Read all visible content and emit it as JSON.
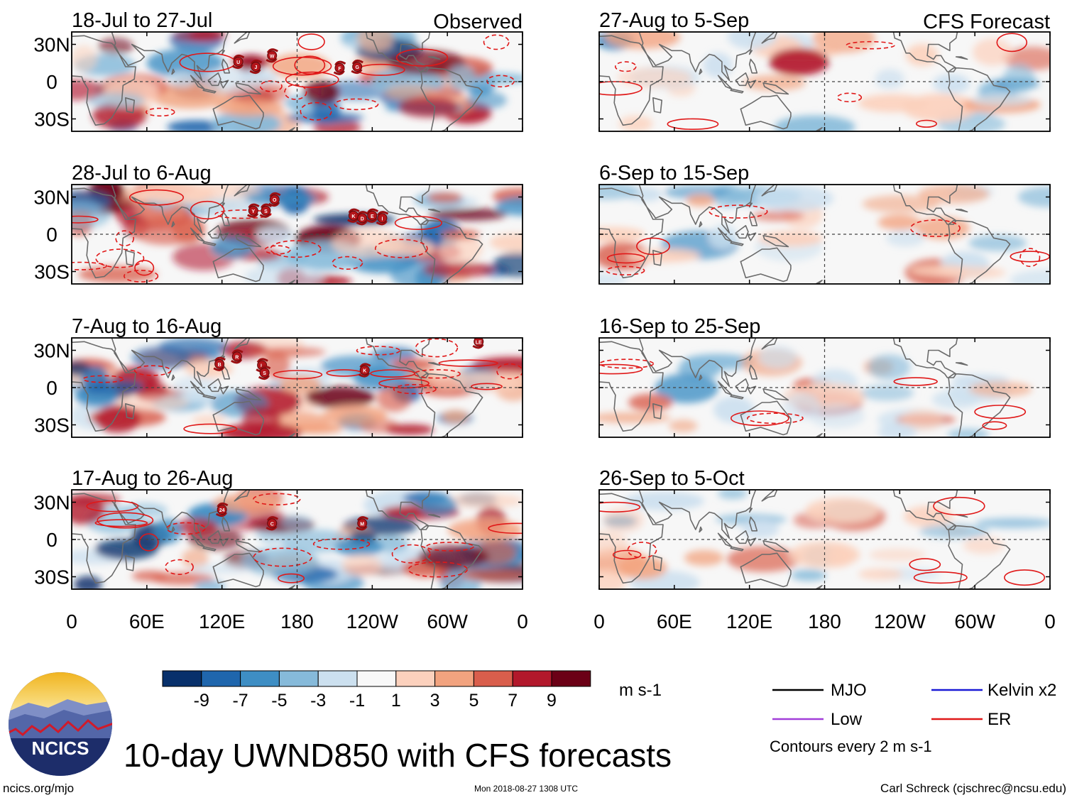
{
  "chart_data": {
    "type": "heatmap",
    "title": "10-day UWND850 with CFS forecasts",
    "variable": "850-hPa zonal wind anomaly",
    "x_ticks": [
      "0",
      "60E",
      "120E",
      "180",
      "120W",
      "60W",
      "0"
    ],
    "y_ticks": [
      "30N",
      "0",
      "30S"
    ],
    "xlim_deg_east": [
      0,
      360
    ],
    "ylim_deg": [
      -40,
      40
    ],
    "observed_label": "Observed",
    "forecast_label": "CFS Forecast",
    "observed_panels": [
      {
        "label": "18-Jul to 27-Jul",
        "storms": [
          {
            "id": "U",
            "lon": 133,
            "lat": 16
          },
          {
            "id": "J",
            "lon": 147,
            "lat": 12
          },
          {
            "id": "W",
            "lon": 160,
            "lat": 21
          },
          {
            "id": "F",
            "lon": 214,
            "lat": 11
          },
          {
            "id": "G",
            "lon": 228,
            "lat": 12
          }
        ]
      },
      {
        "label": "28-Jul to 6-Aug",
        "storms": [
          {
            "id": "O",
            "lon": 162,
            "lat": 28
          },
          {
            "id": "Y",
            "lon": 145,
            "lat": 19
          },
          {
            "id": "S",
            "lon": 155,
            "lat": 19
          },
          {
            "id": "K",
            "lon": 225,
            "lat": 15
          },
          {
            "id": "D",
            "lon": 232,
            "lat": 13
          },
          {
            "id": "E",
            "lon": 240,
            "lat": 15
          },
          {
            "id": "I",
            "lon": 248,
            "lat": 13
          }
        ]
      },
      {
        "label": "7-Aug to 16-Aug",
        "storms": [
          {
            "id": "B",
            "lon": 118,
            "lat": 19
          },
          {
            "id": "R",
            "lon": 132,
            "lat": 25
          },
          {
            "id": "L",
            "lon": 152,
            "lat": 18
          },
          {
            "id": "S",
            "lon": 154,
            "lat": 12
          },
          {
            "id": "LE",
            "lon": 325,
            "lat": 37
          },
          {
            "id": "K",
            "lon": 234,
            "lat": 14
          }
        ]
      },
      {
        "label": "17-Aug to 26-Aug",
        "storms": [
          {
            "id": "24",
            "lon": 120,
            "lat": 24
          },
          {
            "id": "C",
            "lon": 160,
            "lat": 13
          },
          {
            "id": "M",
            "lon": 232,
            "lat": 13
          }
        ]
      }
    ],
    "forecast_panels": [
      {
        "label": "27-Aug to 5-Sep"
      },
      {
        "label": "6-Sep to 15-Sep"
      },
      {
        "label": "16-Sep to 25-Sep"
      },
      {
        "label": "26-Sep to 5-Oct"
      }
    ],
    "colorbar": {
      "labels": [
        "-9",
        "-7",
        "-5",
        "-3",
        "-1",
        "1",
        "3",
        "5",
        "7",
        "9"
      ],
      "colors": [
        "#08306b",
        "#1f66ad",
        "#3e8ec4",
        "#86bada",
        "#cce0ef",
        "#f8f8f8",
        "#fcd1bd",
        "#f2a37f",
        "#d95e4c",
        "#b2182b",
        "#6b0016"
      ],
      "units": "m s-1"
    },
    "legend": [
      {
        "name": "MJO",
        "color": "#000000"
      },
      {
        "name": "Kelvin x2",
        "color": "#1a1ad6"
      },
      {
        "name": "Low",
        "color": "#a23ed9"
      },
      {
        "name": "ER",
        "color": "#e01818"
      }
    ],
    "contour_note": "Contours every 2 m s-1"
  },
  "logo": {
    "text": "NCICS"
  },
  "footer": {
    "url": "ncics.org/mjo",
    "timestamp": "Mon 2018-08-27 1308 UTC",
    "credit": "Carl Schreck (cjschrec@ncsu.edu)"
  }
}
